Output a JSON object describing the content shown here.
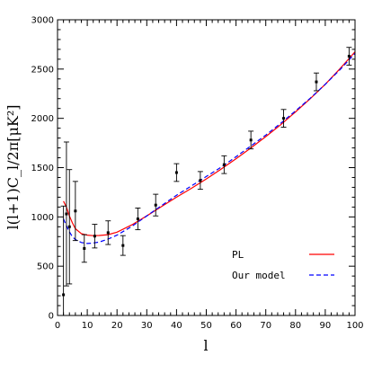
{
  "chart_data": {
    "type": "line",
    "xlabel": "l",
    "ylabel": "l(l+1)C_l/2π[μK²]",
    "xlim": [
      0,
      100
    ],
    "ylim": [
      0,
      3000
    ],
    "x_ticks": [
      0,
      10,
      20,
      30,
      40,
      50,
      60,
      70,
      80,
      90,
      100
    ],
    "y_ticks": [
      0,
      500,
      1000,
      1500,
      2000,
      2500,
      3000
    ],
    "grid": false,
    "legend_placement": "lower-right",
    "series": [
      {
        "name": "PL",
        "color": "#ff0000",
        "dash": "solid",
        "x": [
          2,
          3,
          4,
          5,
          6,
          8,
          10,
          12,
          14,
          17,
          20,
          25,
          30,
          35,
          40,
          45,
          50,
          55,
          60,
          65,
          70,
          75,
          80,
          85,
          90,
          95,
          100
        ],
        "y": [
          1160,
          1100,
          1010,
          940,
          880,
          830,
          815,
          810,
          812,
          820,
          845,
          920,
          1010,
          1105,
          1200,
          1290,
          1385,
          1485,
          1590,
          1700,
          1815,
          1935,
          2065,
          2200,
          2345,
          2505,
          2675
        ]
      },
      {
        "name": "Our model",
        "color": "#0000ff",
        "dash": "dashed",
        "x": [
          2,
          3,
          4,
          5,
          6,
          8,
          10,
          12,
          14,
          17,
          20,
          25,
          30,
          35,
          40,
          45,
          50,
          55,
          60,
          65,
          70,
          75,
          80,
          85,
          90,
          95,
          100
        ],
        "y": [
          980,
          910,
          850,
          800,
          770,
          740,
          730,
          735,
          745,
          775,
          815,
          905,
          1010,
          1115,
          1220,
          1315,
          1410,
          1505,
          1610,
          1720,
          1830,
          1950,
          2075,
          2205,
          2345,
          2495,
          2660
        ]
      }
    ],
    "data_points": [
      {
        "x": 2,
        "y": 210,
        "err": 900
      },
      {
        "x": 3,
        "y": 1030,
        "err": 730
      },
      {
        "x": 4,
        "y": 900,
        "err": 580
      },
      {
        "x": 6,
        "y": 1060,
        "err": 300
      },
      {
        "x": 9,
        "y": 680,
        "err": 140
      },
      {
        "x": 12.5,
        "y": 805,
        "err": 120
      },
      {
        "x": 17,
        "y": 840,
        "err": 120
      },
      {
        "x": 22,
        "y": 710,
        "err": 100
      },
      {
        "x": 27,
        "y": 980,
        "err": 110
      },
      {
        "x": 33,
        "y": 1120,
        "err": 110
      },
      {
        "x": 40,
        "y": 1450,
        "err": 90
      },
      {
        "x": 48,
        "y": 1370,
        "err": 90
      },
      {
        "x": 56,
        "y": 1530,
        "err": 90
      },
      {
        "x": 65,
        "y": 1780,
        "err": 90
      },
      {
        "x": 76,
        "y": 2000,
        "err": 90
      },
      {
        "x": 87,
        "y": 2370,
        "err": 90
      },
      {
        "x": 98,
        "y": 2630,
        "err": 90
      }
    ]
  }
}
